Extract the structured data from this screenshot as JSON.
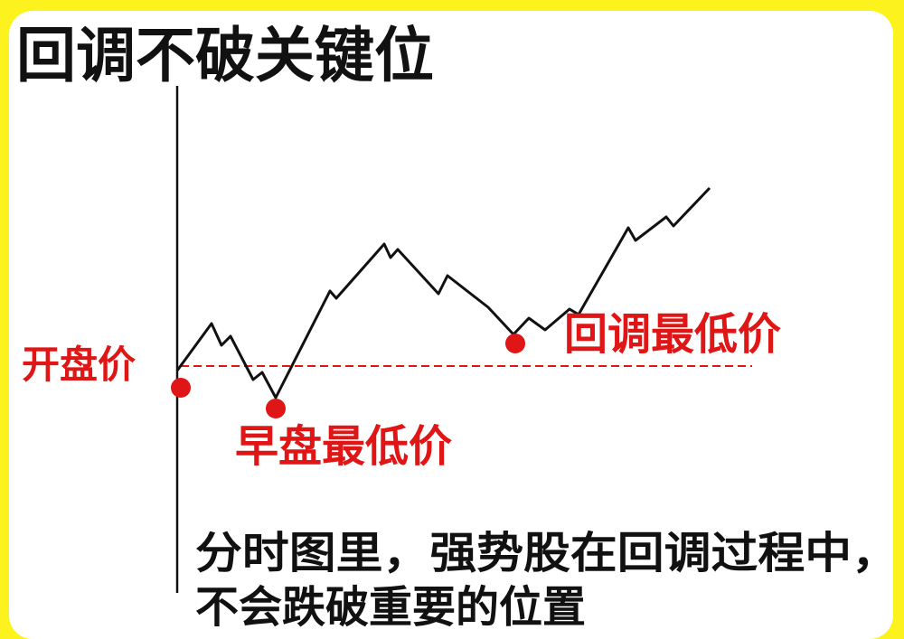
{
  "title": "回调不破关键位",
  "labels": {
    "open_price": "开盘价",
    "morning_low": "早盘最低价",
    "pullback_low": "回调最低价"
  },
  "caption": [
    "分时图里，强势股在回调过程中，",
    "不会跌破重要的位置"
  ]
}
